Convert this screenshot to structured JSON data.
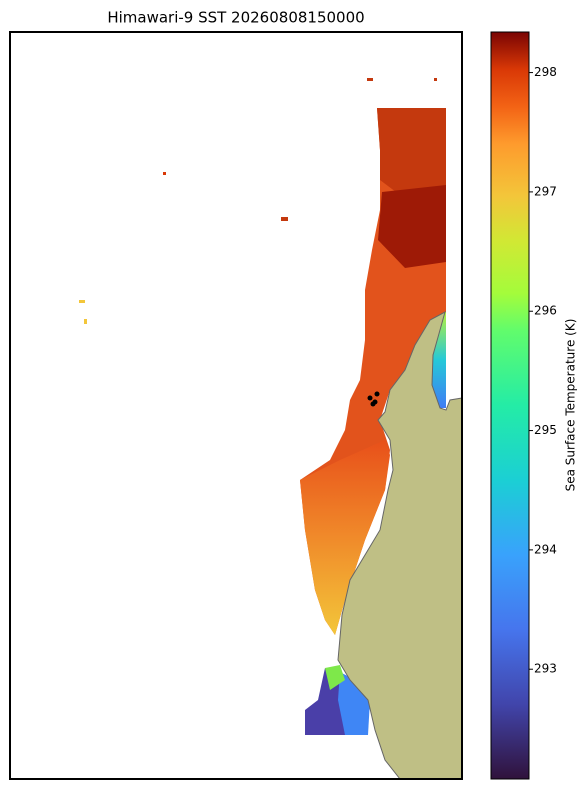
{
  "title": "Himawari-9 SST 20260808150000",
  "colorbar": {
    "label": "Sea Surface Temperature (K)",
    "lim": [
      292.08,
      298.34
    ],
    "ticks": [
      293,
      294,
      295,
      296,
      297,
      298
    ]
  }
}
